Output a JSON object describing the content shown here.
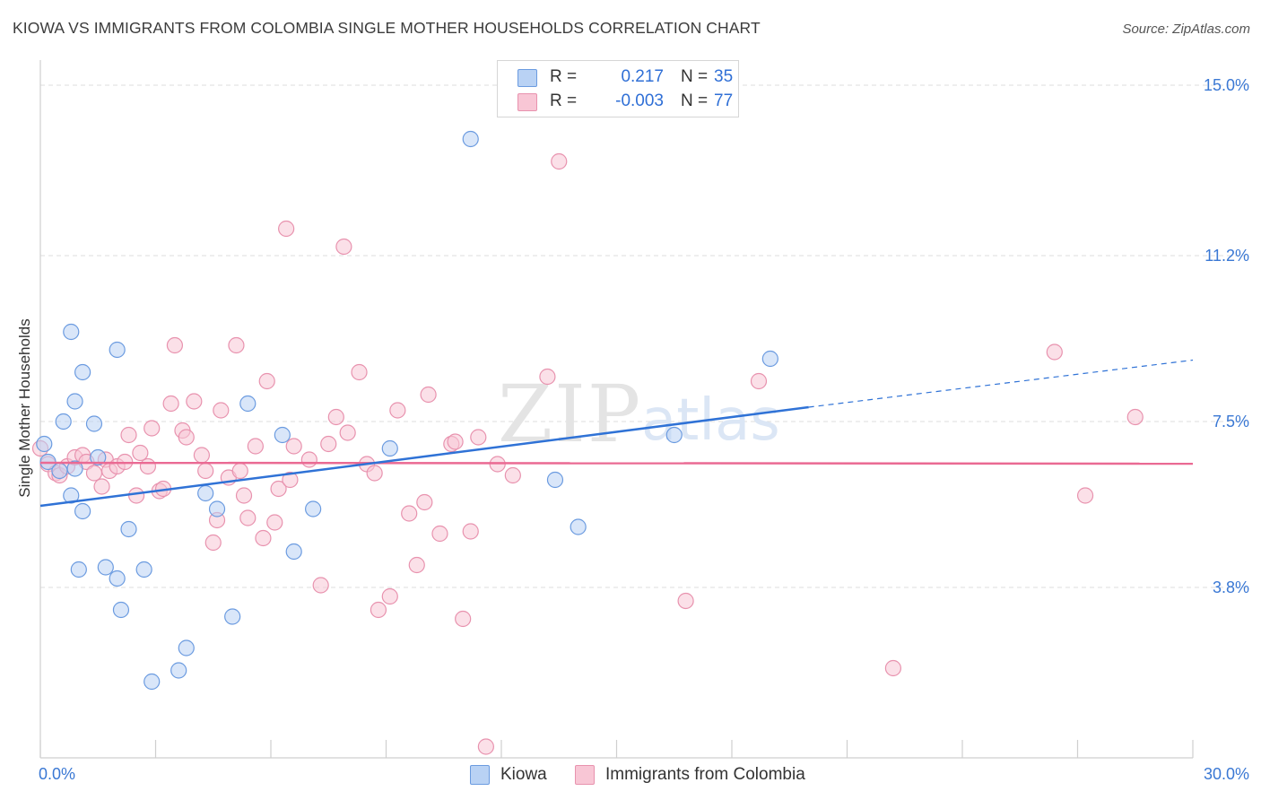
{
  "title": "KIOWA VS IMMIGRANTS FROM COLOMBIA SINGLE MOTHER HOUSEHOLDS CORRELATION CHART",
  "source": "Source: ZipAtlas.com",
  "watermark": {
    "zip": "ZIP",
    "atlas": "atlas"
  },
  "legend": {
    "kiowa": {
      "r_label": "R =",
      "r_value": "0.217",
      "n_label": "N =",
      "n_value": "35"
    },
    "colombia": {
      "r_label": "R =",
      "r_value": "-0.003",
      "n_label": "N =",
      "n_value": "77"
    }
  },
  "colors": {
    "kiowa_fill": "#b9d2f4",
    "kiowa_stroke": "#6b9be0",
    "kiowa_line": "#2f72d6",
    "colombia_fill": "#f8c6d5",
    "colombia_stroke": "#e892ae",
    "colombia_line": "#ea6a93",
    "tick_text": "#3a78d4",
    "grid": "#dcdcdc"
  },
  "chart_data": {
    "type": "scatter",
    "title": "KIOWA VS IMMIGRANTS FROM COLOMBIA SINGLE MOTHER HOUSEHOLDS CORRELATION CHART",
    "xlabel": "",
    "ylabel": "Single Mother Households",
    "xlim": [
      0,
      30
    ],
    "ylim": [
      0,
      15.4
    ],
    "x_tick_labels": [
      "0.0%",
      "30.0%"
    ],
    "y_ticks": [
      3.8,
      7.5,
      11.2,
      15.0
    ],
    "y_tick_labels": [
      "3.8%",
      "7.5%",
      "11.2%",
      "15.0%"
    ],
    "grid": true,
    "legend_position": "bottom-center",
    "series": [
      {
        "name": "Kiowa",
        "trend": {
          "x": [
            0,
            20
          ],
          "y": [
            5.62,
            7.82
          ],
          "dashed_extension_to_x": 30,
          "dashed_end_y": 8.87
        },
        "points": [
          [
            0.1,
            7.0
          ],
          [
            0.2,
            6.6
          ],
          [
            0.5,
            6.4
          ],
          [
            0.6,
            7.5
          ],
          [
            0.8,
            5.85
          ],
          [
            0.9,
            6.45
          ],
          [
            1.1,
            5.5
          ],
          [
            0.8,
            9.5
          ],
          [
            0.9,
            7.95
          ],
          [
            1.1,
            8.6
          ],
          [
            1.4,
            7.45
          ],
          [
            1.5,
            6.7
          ],
          [
            1.0,
            4.2
          ],
          [
            1.7,
            4.25
          ],
          [
            2.0,
            4.0
          ],
          [
            2.1,
            3.3
          ],
          [
            2.3,
            5.1
          ],
          [
            2.7,
            4.2
          ],
          [
            2.0,
            9.1
          ],
          [
            2.9,
            1.7
          ],
          [
            3.6,
            1.95
          ],
          [
            3.8,
            2.45
          ],
          [
            4.3,
            5.9
          ],
          [
            4.6,
            5.55
          ],
          [
            5.0,
            3.15
          ],
          [
            5.4,
            7.9
          ],
          [
            6.3,
            7.2
          ],
          [
            6.6,
            4.6
          ],
          [
            7.1,
            5.55
          ],
          [
            9.1,
            6.9
          ],
          [
            11.2,
            13.8
          ],
          [
            13.4,
            6.2
          ],
          [
            14.0,
            5.15
          ],
          [
            19.0,
            8.9
          ],
          [
            16.5,
            7.2
          ]
        ]
      },
      {
        "name": "Immigrants from Colombia",
        "trend": {
          "x": [
            0,
            30
          ],
          "y": [
            6.58,
            6.56
          ]
        },
        "points": [
          [
            0.0,
            6.9
          ],
          [
            0.2,
            6.55
          ],
          [
            0.4,
            6.35
          ],
          [
            0.5,
            6.3
          ],
          [
            0.7,
            6.5
          ],
          [
            0.9,
            6.7
          ],
          [
            1.1,
            6.75
          ],
          [
            1.2,
            6.6
          ],
          [
            1.4,
            6.35
          ],
          [
            1.6,
            6.05
          ],
          [
            1.7,
            6.65
          ],
          [
            1.8,
            6.4
          ],
          [
            2.0,
            6.5
          ],
          [
            2.2,
            6.6
          ],
          [
            2.3,
            7.2
          ],
          [
            2.5,
            5.85
          ],
          [
            2.6,
            6.8
          ],
          [
            2.8,
            6.5
          ],
          [
            2.9,
            7.35
          ],
          [
            3.1,
            5.95
          ],
          [
            3.2,
            6.0
          ],
          [
            3.4,
            7.9
          ],
          [
            3.5,
            9.2
          ],
          [
            3.7,
            7.3
          ],
          [
            3.8,
            7.15
          ],
          [
            4.0,
            7.95
          ],
          [
            4.2,
            6.75
          ],
          [
            4.3,
            6.4
          ],
          [
            4.5,
            4.8
          ],
          [
            4.6,
            5.3
          ],
          [
            4.7,
            7.75
          ],
          [
            4.9,
            6.25
          ],
          [
            5.1,
            9.2
          ],
          [
            5.2,
            6.4
          ],
          [
            5.3,
            5.85
          ],
          [
            5.4,
            5.35
          ],
          [
            5.6,
            6.95
          ],
          [
            5.8,
            4.9
          ],
          [
            5.9,
            8.4
          ],
          [
            6.1,
            5.25
          ],
          [
            6.2,
            6.0
          ],
          [
            6.4,
            11.8
          ],
          [
            6.5,
            6.2
          ],
          [
            6.6,
            6.95
          ],
          [
            7.0,
            6.65
          ],
          [
            7.3,
            3.85
          ],
          [
            7.5,
            7.0
          ],
          [
            7.7,
            7.6
          ],
          [
            7.9,
            11.4
          ],
          [
            8.0,
            7.25
          ],
          [
            8.3,
            8.6
          ],
          [
            8.5,
            6.55
          ],
          [
            8.7,
            6.35
          ],
          [
            8.8,
            3.3
          ],
          [
            9.1,
            3.6
          ],
          [
            9.3,
            7.75
          ],
          [
            9.6,
            5.45
          ],
          [
            9.8,
            4.3
          ],
          [
            10.0,
            5.7
          ],
          [
            10.1,
            8.1
          ],
          [
            10.4,
            5.0
          ],
          [
            10.7,
            7.0
          ],
          [
            10.8,
            7.05
          ],
          [
            11.0,
            3.1
          ],
          [
            11.2,
            5.05
          ],
          [
            11.4,
            7.15
          ],
          [
            11.6,
            0.25
          ],
          [
            11.9,
            6.55
          ],
          [
            12.3,
            6.3
          ],
          [
            13.2,
            8.5
          ],
          [
            13.5,
            13.3
          ],
          [
            16.8,
            3.5
          ],
          [
            18.7,
            8.4
          ],
          [
            22.2,
            2.0
          ],
          [
            26.4,
            9.05
          ],
          [
            28.5,
            7.6
          ],
          [
            27.2,
            5.85
          ]
        ]
      }
    ]
  }
}
